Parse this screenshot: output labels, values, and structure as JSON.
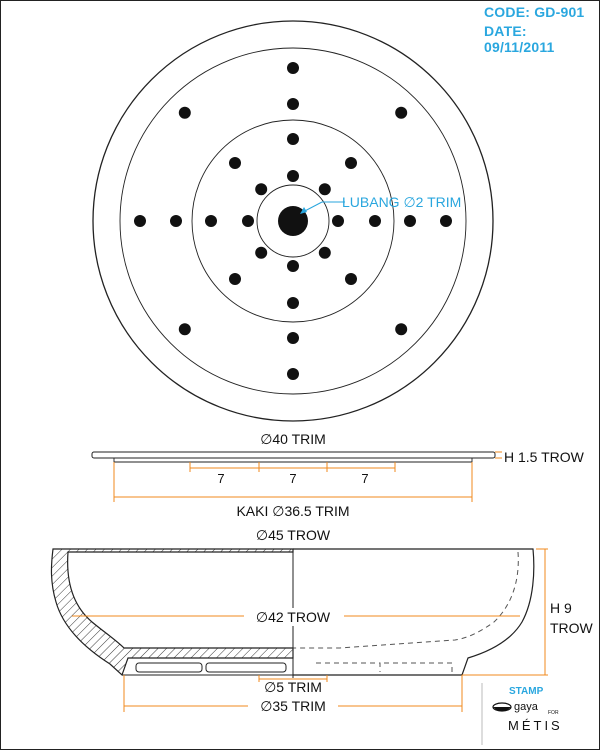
{
  "header": {
    "code": "CODE: GD-901",
    "date": "DATE: 09/11/2011"
  },
  "plan_view": {
    "hole_callout": "LUBANG ∅2 TRIM"
  },
  "plate_profile": {
    "outer_diameter": "∅40 TRIM",
    "thickness": "H 1.5 TROW",
    "segment_1": "7",
    "segment_2": "7",
    "segment_3": "7",
    "foot_diameter": "KAKI ∅36.5 TRIM"
  },
  "bowl_section": {
    "outer_diameter": "∅45 TROW",
    "inner_diameter": "∅42 TROW",
    "height_line1": "H 9",
    "height_line2": "TROW",
    "drain_diameter": "∅5 TRIM",
    "base_diameter": "∅35 TRIM"
  },
  "stamp": {
    "title": "STAMP",
    "brand_small": "gaya",
    "brand_for": "FOR",
    "brand_big": "MÉTIS"
  },
  "colors": {
    "accent": "#2aa7df",
    "dimension": "#f08a1c",
    "line": "#222222"
  }
}
